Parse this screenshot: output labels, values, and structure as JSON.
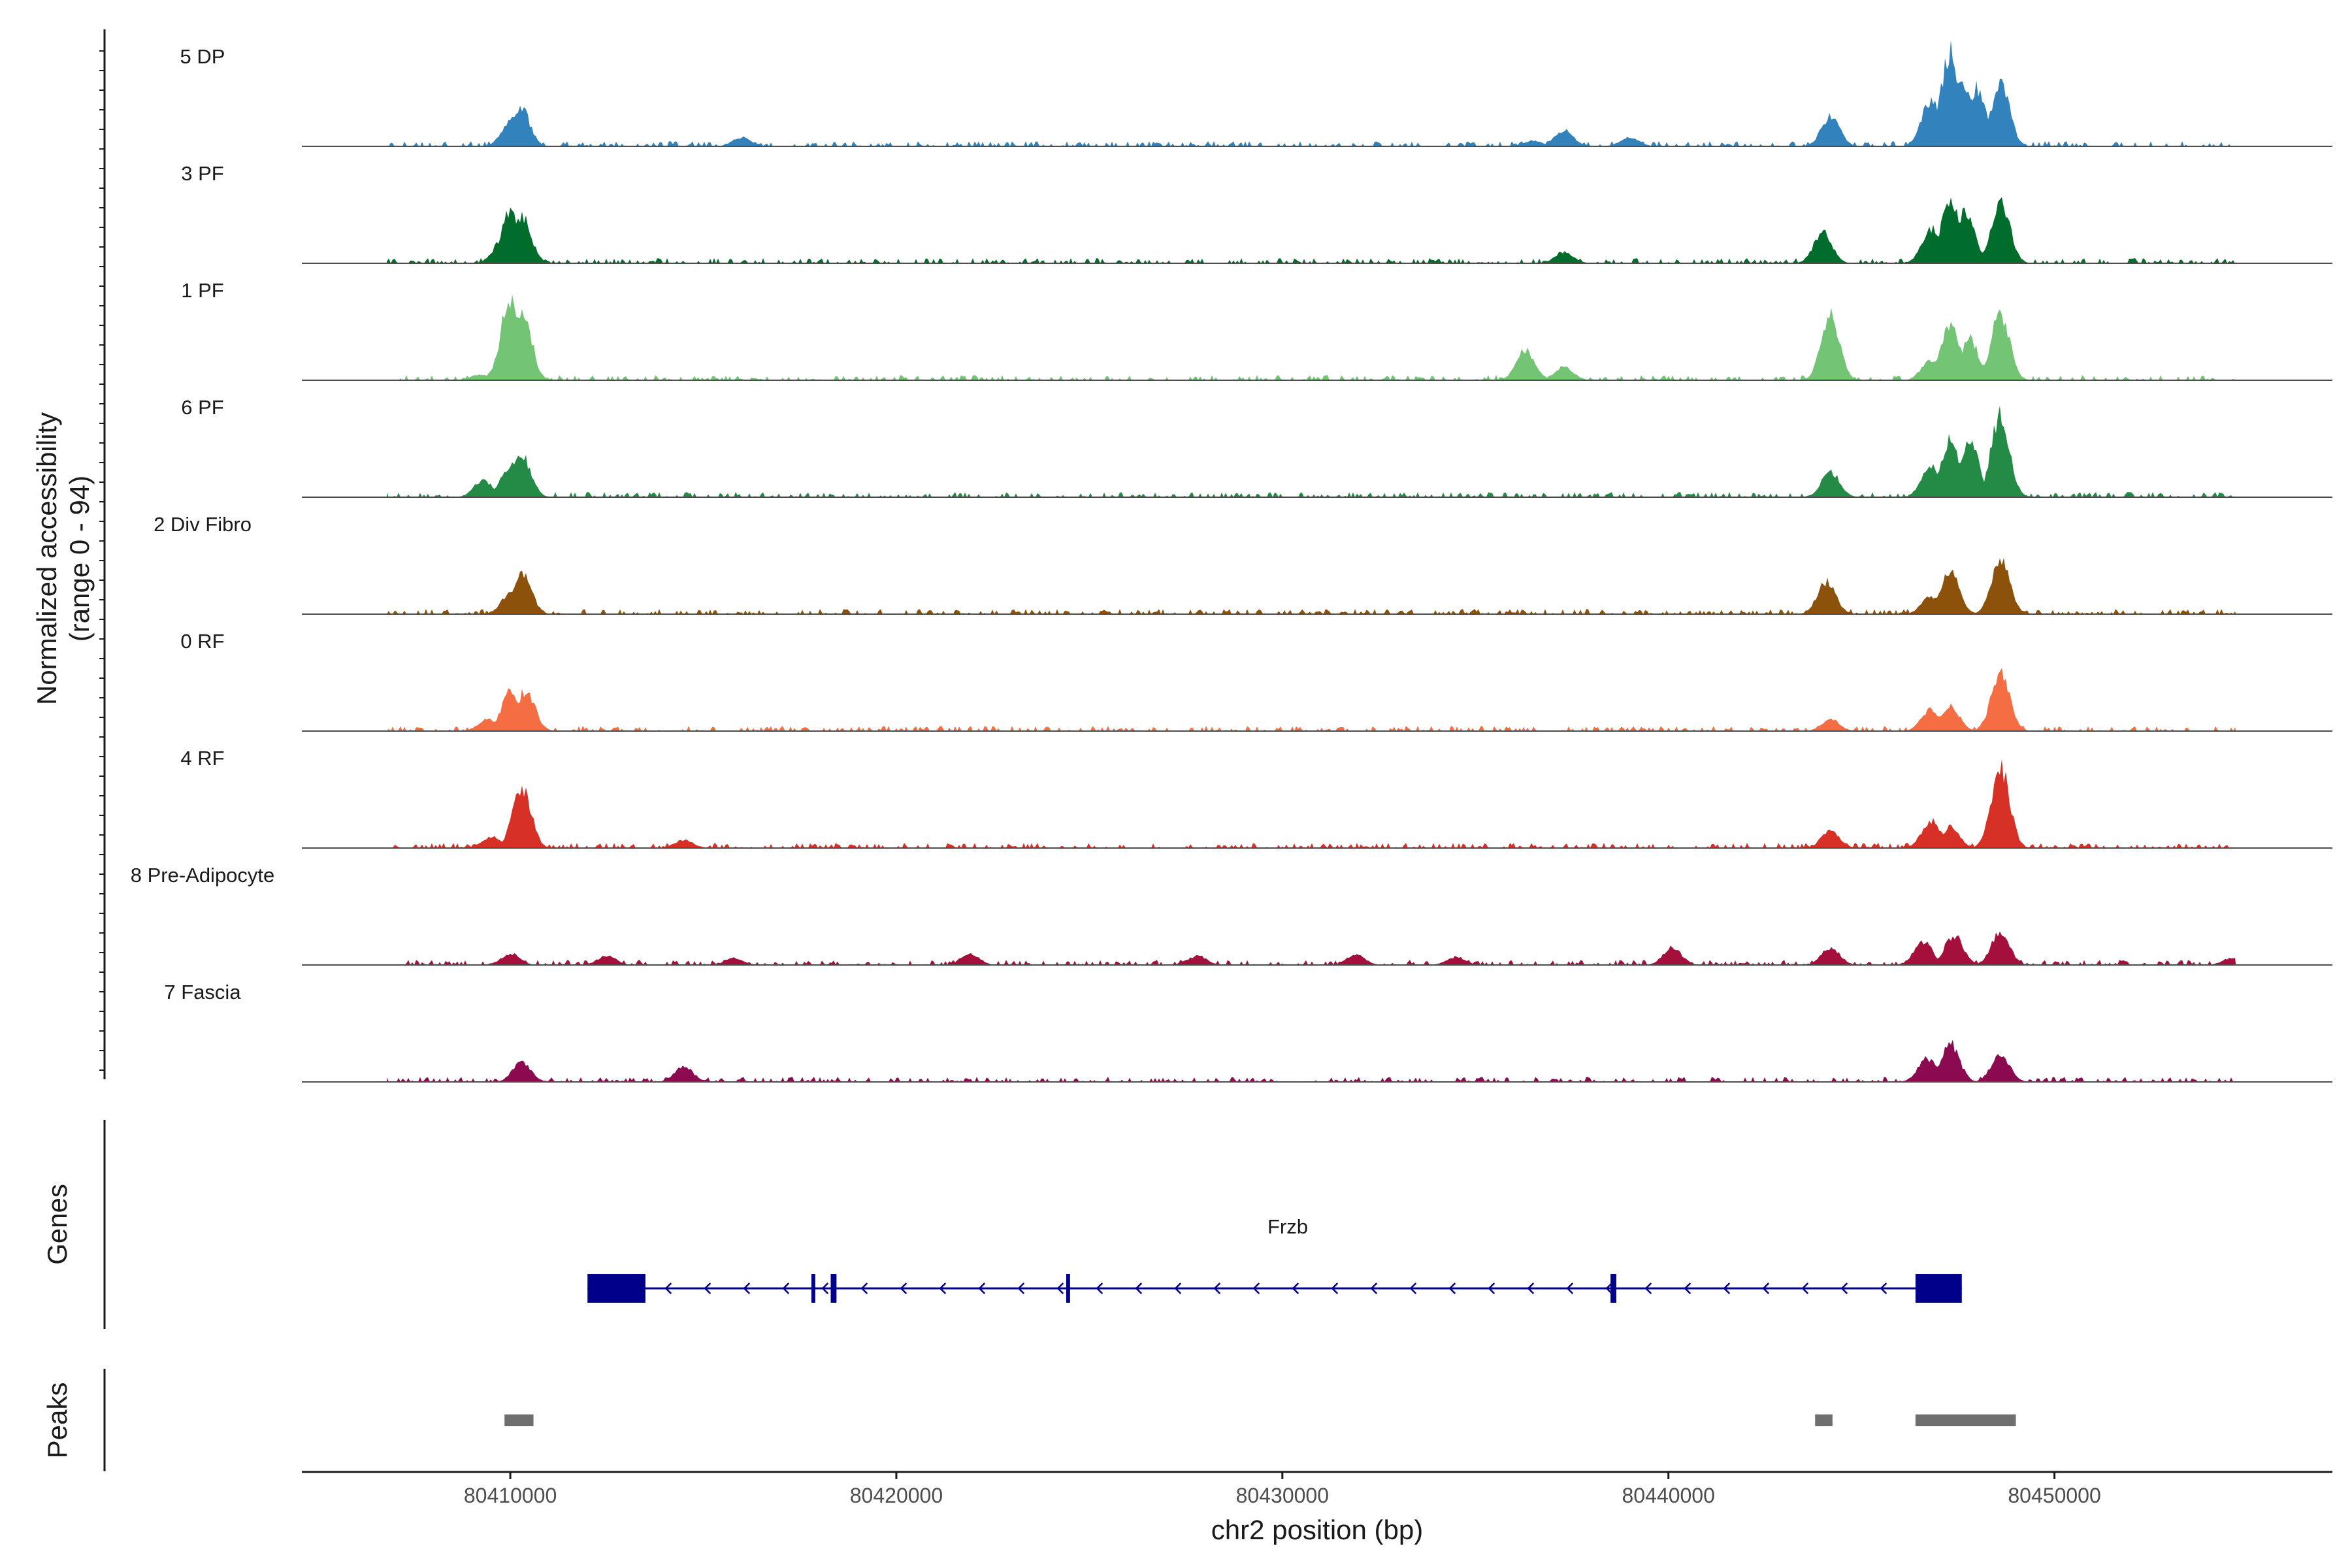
{
  "chart_data": {
    "type": "area",
    "title": "",
    "chromosome": "chr2",
    "xlabel": "chr2 position (bp)",
    "ylabel_line1": "Normalized accessibility",
    "ylabel_line2": "(range 0 - 94)",
    "y_range": [
      0,
      94
    ],
    "xlim": [
      80404600,
      80457200
    ],
    "x_ticks": [
      80410000,
      80420000,
      80430000,
      80440000,
      80450000
    ],
    "x_tick_labels": [
      "80410000",
      "80420000",
      "80430000",
      "80440000",
      "80450000"
    ],
    "tracks": [
      {
        "name": "5 DP",
        "color": "#3182BD",
        "peaks": [
          [
            80410250,
            35
          ],
          [
            80410000,
            20
          ],
          [
            80416000,
            8
          ],
          [
            80436500,
            5
          ],
          [
            80437300,
            14
          ],
          [
            80439000,
            8
          ],
          [
            80444200,
            26
          ],
          [
            80446800,
            40
          ],
          [
            80447300,
            80
          ],
          [
            80447600,
            55
          ],
          [
            80448000,
            50
          ],
          [
            80448600,
            55
          ]
        ]
      },
      {
        "name": "3 PF",
        "color": "#006D2C",
        "peaks": [
          [
            80409800,
            20
          ],
          [
            80410000,
            45
          ],
          [
            80410300,
            40
          ],
          [
            80437300,
            10
          ],
          [
            80444000,
            27
          ],
          [
            80446800,
            30
          ],
          [
            80447300,
            56
          ],
          [
            80447700,
            45
          ],
          [
            80448600,
            55
          ]
        ]
      },
      {
        "name": "1 PF",
        "color": "#74C476",
        "peaks": [
          [
            80409200,
            5
          ],
          [
            80409700,
            10
          ],
          [
            80410000,
            72
          ],
          [
            80410300,
            62
          ],
          [
            80436300,
            26
          ],
          [
            80437300,
            12
          ],
          [
            80444200,
            55
          ],
          [
            80446800,
            18
          ],
          [
            80447300,
            48
          ],
          [
            80447800,
            35
          ],
          [
            80448600,
            57
          ]
        ]
      },
      {
        "name": "6 PF",
        "color": "#238B45",
        "peaks": [
          [
            80409300,
            15
          ],
          [
            80410000,
            28
          ],
          [
            80410300,
            35
          ],
          [
            80444200,
            22
          ],
          [
            80446800,
            28
          ],
          [
            80447300,
            48
          ],
          [
            80447800,
            50
          ],
          [
            80448600,
            70
          ]
        ]
      },
      {
        "name": "2 Div Fibro",
        "color": "#8C510A",
        "peaks": [
          [
            80410000,
            18
          ],
          [
            80410300,
            37
          ],
          [
            80444100,
            28
          ],
          [
            80446800,
            15
          ],
          [
            80447300,
            37
          ],
          [
            80448600,
            47
          ]
        ]
      },
      {
        "name": "0 RF",
        "color": "#F46D43",
        "peaks": [
          [
            80409400,
            10
          ],
          [
            80410000,
            33
          ],
          [
            80410400,
            35
          ],
          [
            80444200,
            10
          ],
          [
            80446800,
            19
          ],
          [
            80447300,
            22
          ],
          [
            80448600,
            50
          ]
        ]
      },
      {
        "name": "4 RF",
        "color": "#D73027",
        "peaks": [
          [
            80409500,
            10
          ],
          [
            80410300,
            52
          ],
          [
            80414500,
            7
          ],
          [
            80444200,
            15
          ],
          [
            80446800,
            24
          ],
          [
            80447300,
            18
          ],
          [
            80448600,
            70
          ]
        ]
      },
      {
        "name": "8 Pre-Adipocyte",
        "color": "#A50F3C",
        "peaks": [
          [
            80410000,
            10
          ],
          [
            80412500,
            8
          ],
          [
            80415800,
            6
          ],
          [
            80421900,
            10
          ],
          [
            80427800,
            8
          ],
          [
            80431900,
            9
          ],
          [
            80434500,
            7
          ],
          [
            80440100,
            15
          ],
          [
            80444200,
            15
          ],
          [
            80446600,
            20
          ],
          [
            80447400,
            26
          ],
          [
            80448600,
            28
          ],
          [
            80454600,
            6
          ]
        ]
      },
      {
        "name": "7 Fascia",
        "color": "#8B0A50",
        "peaks": [
          [
            80410300,
            17
          ],
          [
            80414500,
            13
          ],
          [
            80446700,
            20
          ],
          [
            80447300,
            33
          ],
          [
            80448600,
            24
          ]
        ]
      }
    ],
    "genes_label": "Genes",
    "peaks_label": "Peaks",
    "genes": [
      {
        "name": "Frzb",
        "strand": "-",
        "start": 80412000,
        "end": 80447600,
        "exons": [
          [
            80412000,
            80413500
          ],
          [
            80417800,
            80417900
          ],
          [
            80418300,
            80418450
          ],
          [
            80424400,
            80424500
          ],
          [
            80438500,
            80438650
          ],
          [
            80446400,
            80447600
          ]
        ]
      }
    ],
    "peak_regions": [
      [
        80409850,
        80410600
      ],
      [
        80443800,
        80444250
      ],
      [
        80446400,
        80449000
      ]
    ],
    "colors": {
      "gene": "#00008B",
      "peak_region": "#6E6E6E",
      "baseline": "#4D4D4D"
    }
  }
}
